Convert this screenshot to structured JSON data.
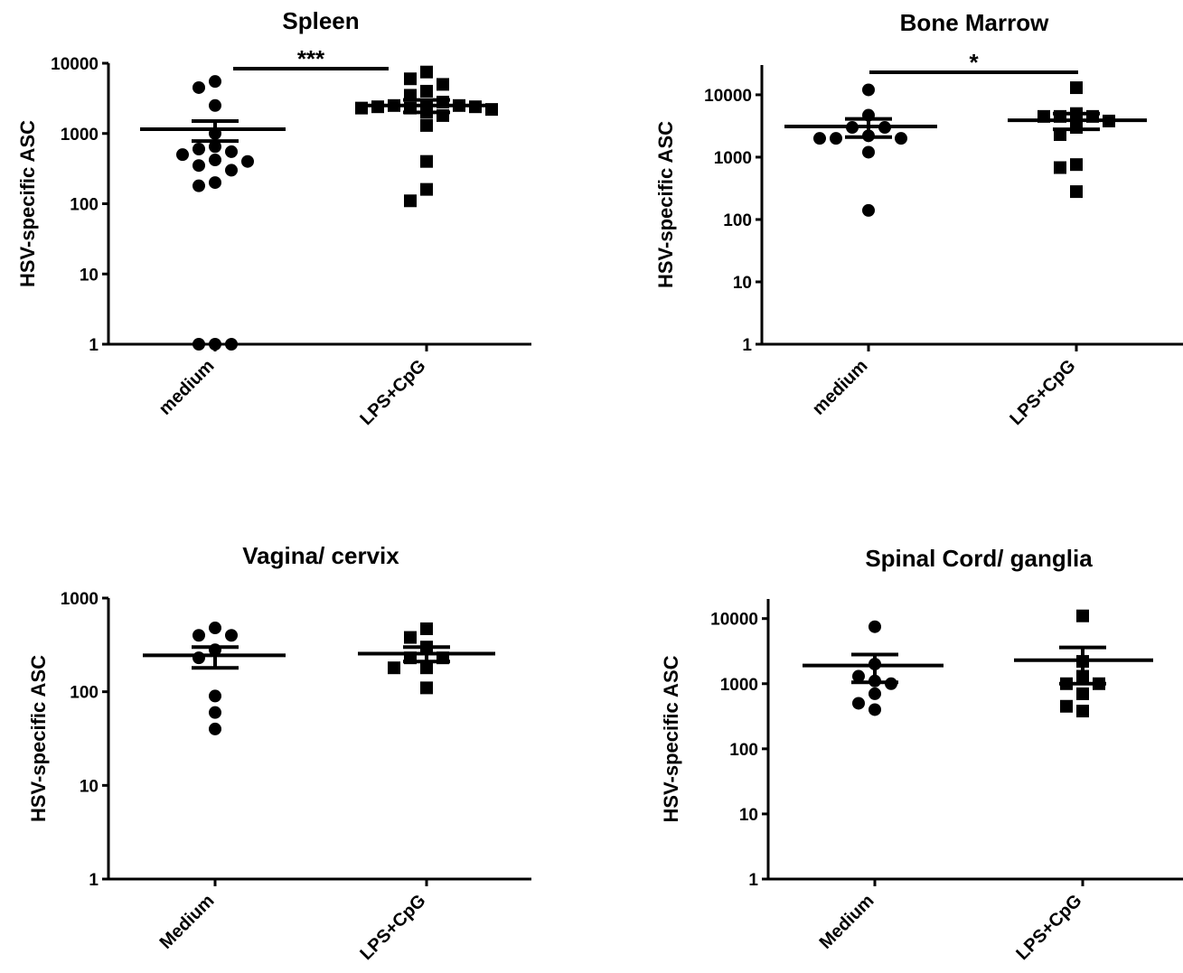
{
  "colors": {
    "foreground": "#000000",
    "background": "#ffffff"
  },
  "chart_data": [
    {
      "type": "scatter",
      "title": "Spleen",
      "ylabel": "HSV-specific  ASC",
      "yscale": "log",
      "ylim": [
        1,
        10000
      ],
      "yticks": [
        "1",
        "10",
        "100",
        "1000",
        "10000"
      ],
      "categories": [
        "medium",
        "LPS+CpG"
      ],
      "marker_shapes": [
        "circle",
        "square"
      ],
      "series": [
        {
          "values": [
            5500,
            4500,
            2500,
            1000,
            650,
            600,
            550,
            500,
            420,
            400,
            350,
            300,
            200,
            180,
            1,
            1,
            1
          ],
          "mean": 1150,
          "sem_low": 780,
          "sem_high": 1500
        },
        {
          "values": [
            7500,
            6000,
            5000,
            4000,
            3500,
            2800,
            2500,
            2500,
            2500,
            2400,
            2400,
            2300,
            2300,
            2200,
            2000,
            1800,
            1300,
            400,
            160,
            110
          ],
          "mean": 2500,
          "sem_low": 2000,
          "sem_high": 3000
        }
      ],
      "significance": "***"
    },
    {
      "type": "scatter",
      "title": "Bone Marrow",
      "ylabel": "HSV-specific  ASC",
      "yscale": "log",
      "ylim": [
        1,
        30000
      ],
      "yticks": [
        "1",
        "10",
        "100",
        "1000",
        "10000"
      ],
      "categories": [
        "medium",
        "LPS+CpG"
      ],
      "marker_shapes": [
        "circle",
        "square"
      ],
      "series": [
        {
          "values": [
            12000,
            4700,
            3000,
            3000,
            2200,
            2000,
            2000,
            2000,
            1200,
            140
          ],
          "mean": 3100,
          "sem_low": 2100,
          "sem_high": 4100
        },
        {
          "values": [
            13000,
            5000,
            4500,
            4500,
            4500,
            3800,
            3000,
            2300,
            760,
            680,
            280
          ],
          "mean": 3900,
          "sem_low": 2800,
          "sem_high": 5000
        }
      ],
      "significance": "*"
    },
    {
      "type": "scatter",
      "title": "Vagina/ cervix",
      "ylabel": "HSV-specific  ASC",
      "yscale": "log",
      "ylim": [
        1,
        1000
      ],
      "yticks": [
        "1",
        "10",
        "100",
        "1000"
      ],
      "categories": [
        "Medium",
        "LPS+CpG"
      ],
      "marker_shapes": [
        "circle",
        "square"
      ],
      "series": [
        {
          "values": [
            480,
            400,
            400,
            280,
            230,
            90,
            60,
            40
          ],
          "mean": 245,
          "sem_low": 180,
          "sem_high": 300
        },
        {
          "values": [
            470,
            380,
            300,
            230,
            230,
            180,
            180,
            110
          ],
          "mean": 255,
          "sem_low": 210,
          "sem_high": 300
        }
      ],
      "significance": ""
    },
    {
      "type": "scatter",
      "title": "Spinal Cord/ ganglia",
      "ylabel": "HSV-specific  ASC",
      "yscale": "log",
      "ylim": [
        1,
        20000
      ],
      "yticks": [
        "1",
        "10",
        "100",
        "1000",
        "10000"
      ],
      "categories": [
        "Medium",
        "LPS+CpG"
      ],
      "marker_shapes": [
        "circle",
        "square"
      ],
      "series": [
        {
          "values": [
            7500,
            2000,
            1300,
            1100,
            1000,
            700,
            500,
            400
          ],
          "mean": 1900,
          "sem_low": 1050,
          "sem_high": 2800
        },
        {
          "values": [
            11000,
            2200,
            1300,
            1000,
            1000,
            700,
            450,
            380
          ],
          "mean": 2300,
          "sem_low": 1000,
          "sem_high": 3600
        }
      ],
      "significance": ""
    }
  ]
}
